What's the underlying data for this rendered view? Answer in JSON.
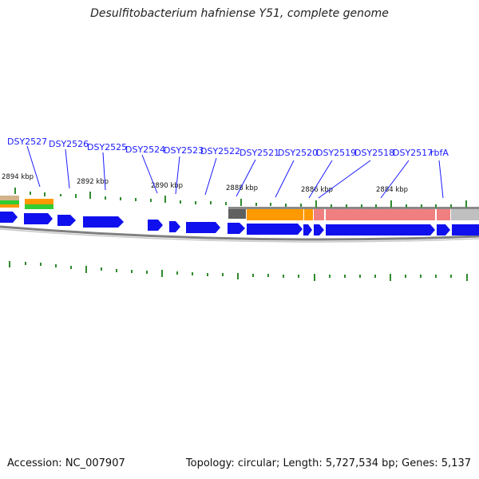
{
  "title": "Desulfitobacterium hafniense Y51, complete genome",
  "footer": {
    "accession": "Accession: NC_007907",
    "summary": "Topology: circular; Length: 5,727,534 bp; Genes: 5,137"
  },
  "colors": {
    "gene_label": "#1a1aff",
    "cds": "#1010ee",
    "backbone": "#808080",
    "gc_ticks": "#2e8b2e",
    "feature_orange": "#ff9900",
    "feature_pink": "#f08080",
    "feature_gray": "#c0c0c0",
    "feature_dark": "#606060",
    "feature_green": "#33cc33"
  },
  "gene_labels": [
    "DSY2527",
    "DSY2526",
    "DSY2525",
    "DSY2524",
    "DSY2523",
    "DSY2522",
    "DSY2521",
    "DSY2520",
    "DSY2519",
    "DSY2518",
    "DSY2517",
    "rbfA"
  ],
  "kbp_labels": [
    "2894 kbp",
    "2892 kbp",
    "2890 kbp",
    "2888 kbp",
    "2886 kbp",
    "2884 kbp"
  ]
}
